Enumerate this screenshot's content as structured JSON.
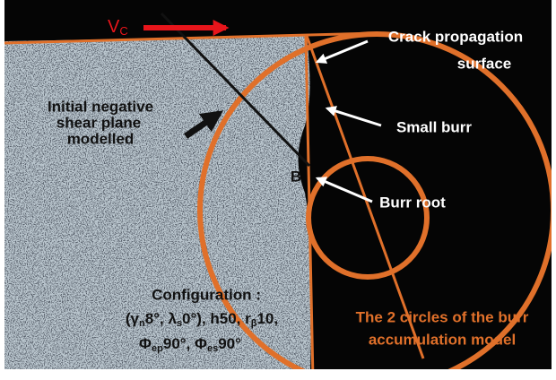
{
  "labels": {
    "cutting_speed": {
      "symbol": "V",
      "subscript": "C"
    },
    "crack_surface": [
      "Crack propagation",
      "surface"
    ],
    "shear_plane": [
      "Initial negative",
      "shear plane",
      "modelled"
    ],
    "small_burr": "Small burr",
    "point_b": "B",
    "burr_root": "Burr root",
    "configuration": {
      "line1": "Configuration :",
      "line2": [
        "(γ",
        "n",
        "8°, λ",
        "s",
        "0°), h50, r",
        "β",
        "10,"
      ],
      "line3": [
        "Φ",
        "ep",
        "90°, Φ",
        "es",
        "90°"
      ]
    },
    "model": [
      "The 2 circles of the burr",
      "accumulation model"
    ]
  }
}
